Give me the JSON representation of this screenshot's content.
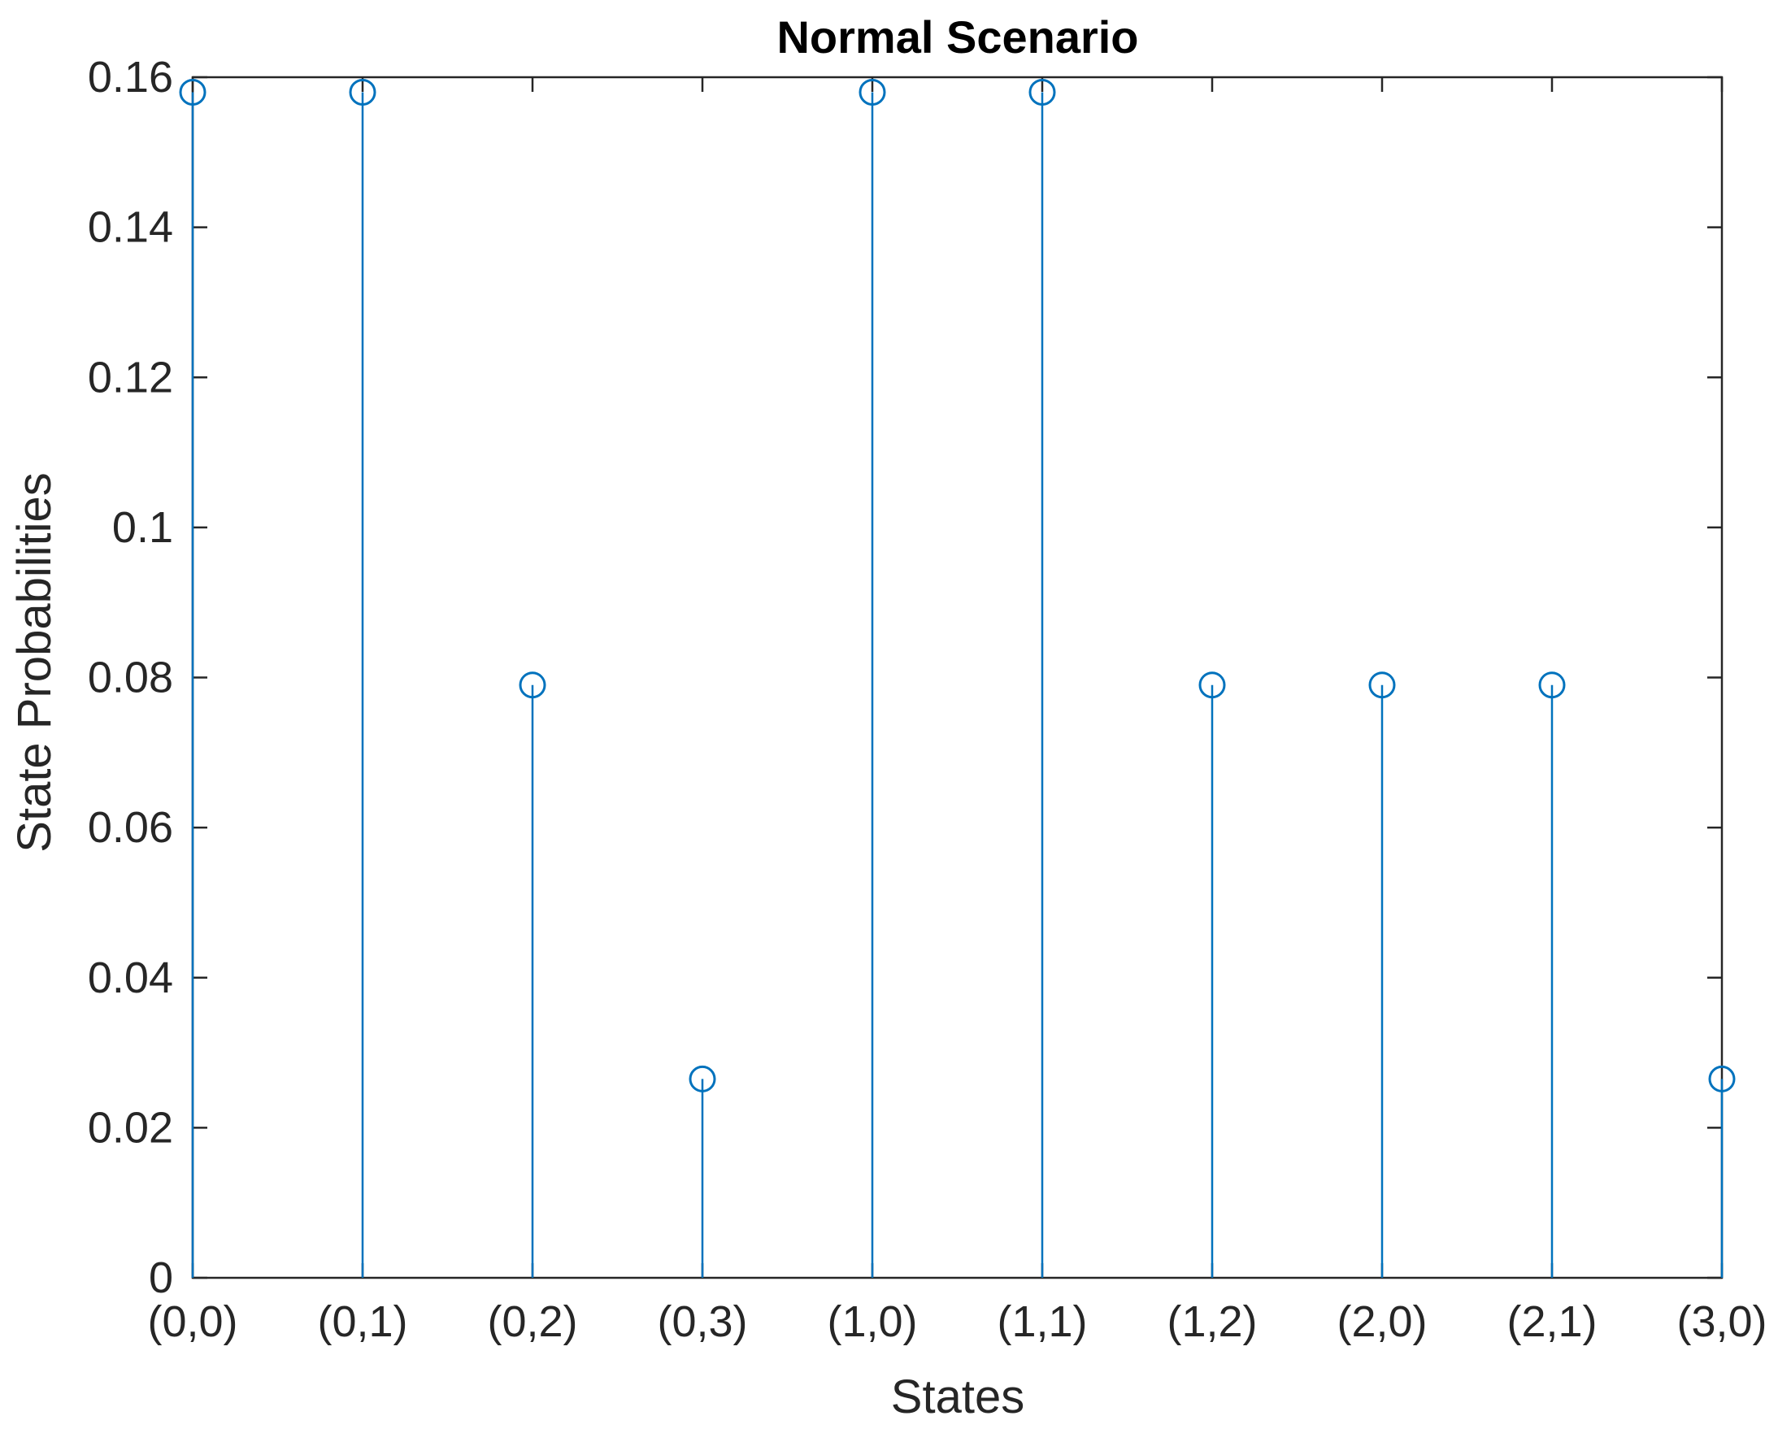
{
  "chart_data": {
    "type": "stem",
    "title": "Normal Scenario",
    "xlabel": "States",
    "ylabel": "State Probabilities",
    "categories": [
      "(0,0)",
      "(0,1)",
      "(0,2)",
      "(0,3)",
      "(1,0)",
      "(1,1)",
      "(1,2)",
      "(2,0)",
      "(2,1)",
      "(3,0)"
    ],
    "values": [
      0.158,
      0.158,
      0.079,
      0.0265,
      0.158,
      0.158,
      0.079,
      0.079,
      0.079,
      0.0265
    ],
    "ylim": [
      0,
      0.16
    ],
    "yticks": [
      0,
      0.02,
      0.04,
      0.06,
      0.08,
      0.1,
      0.12,
      0.14,
      0.16
    ],
    "ytick_labels": [
      "0",
      "0.02",
      "0.04",
      "0.06",
      "0.08",
      "0.1",
      "0.12",
      "0.14",
      "0.16"
    ],
    "grid": false,
    "legend": "none",
    "colors": {
      "series": "#0072BD",
      "axis": "#262626",
      "title": "#000000",
      "background": "#FFFFFF"
    }
  }
}
